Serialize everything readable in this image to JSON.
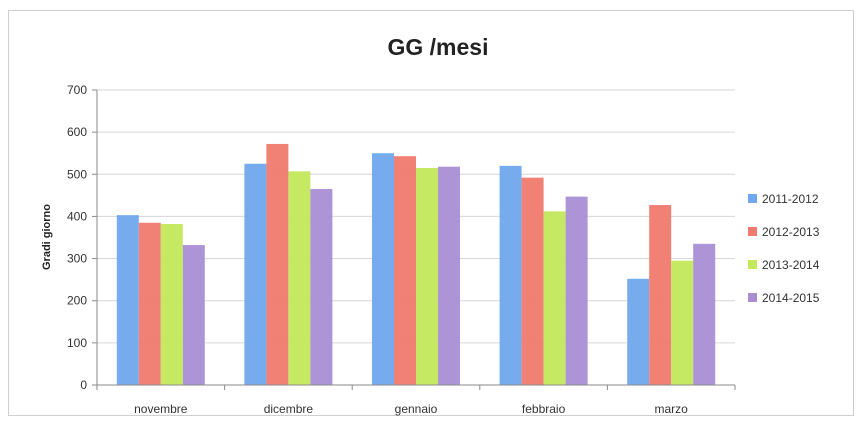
{
  "chart_data": {
    "type": "bar",
    "title": "GG /mesi",
    "xlabel": "",
    "ylabel": "Gradi giorno",
    "ylim": [
      0,
      700
    ],
    "yticks": [
      0,
      100,
      200,
      300,
      400,
      500,
      600,
      700
    ],
    "grid": true,
    "legend_position": "right",
    "categories": [
      "novembre",
      "dicembre",
      "gennaio",
      "febbraio",
      "marzo"
    ],
    "series": [
      {
        "name": "2011-2012",
        "color": "#6fa8ec",
        "values": [
          403,
          525,
          550,
          520,
          252
        ]
      },
      {
        "name": "2012-2013",
        "color": "#f07a6e",
        "values": [
          385,
          572,
          543,
          492,
          427
        ]
      },
      {
        "name": "2013-2014",
        "color": "#c3e85c",
        "values": [
          382,
          507,
          515,
          412,
          295
        ]
      },
      {
        "name": "2014-2015",
        "color": "#a98ed4",
        "values": [
          332,
          465,
          518,
          447,
          335
        ]
      }
    ]
  }
}
